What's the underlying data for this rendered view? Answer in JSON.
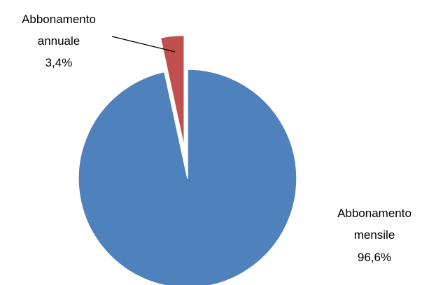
{
  "chart_data": {
    "type": "pie",
    "slices": [
      {
        "name": "Abbonamento mensile",
        "label_lines": [
          "Abbonamento",
          "mensile"
        ],
        "value": 96.6,
        "value_label": "96,6%",
        "color": "#4F81BD"
      },
      {
        "name": "Abbonamento annuale",
        "label_lines": [
          "Abbonamento",
          "annuale"
        ],
        "value": 3.4,
        "value_label": "3,4%",
        "color": "#C0504D"
      }
    ],
    "legend": "none",
    "exploded_slice": "Abbonamento annuale"
  }
}
